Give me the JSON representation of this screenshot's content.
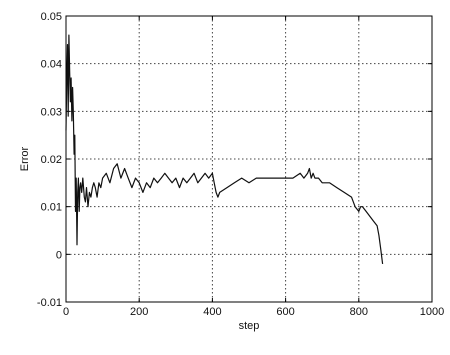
{
  "chart_data": {
    "type": "line",
    "title": "",
    "xlabel": "step",
    "ylabel": "Error",
    "xlim": [
      0,
      1000
    ],
    "ylim": [
      -0.01,
      0.05
    ],
    "xticks": [
      0,
      200,
      400,
      600,
      800,
      1000
    ],
    "xtick_labels": [
      "0",
      "200",
      "400",
      "600",
      "800",
      "1000"
    ],
    "yticks": [
      -0.01,
      0,
      0.01,
      0.02,
      0.03,
      0.04,
      0.05
    ],
    "ytick_labels": [
      "-0.01",
      "0",
      "0.01",
      "0.02",
      "0.03",
      "0.04",
      "0.05"
    ],
    "grid": true,
    "colors": {
      "line": "#111111",
      "grid": "#444444",
      "axes": "#000000"
    },
    "series": [
      {
        "x": [
          0,
          2,
          4,
          6,
          8,
          10,
          12,
          14,
          16,
          18,
          20,
          22,
          24,
          26,
          28,
          30,
          32,
          34,
          36,
          38,
          40,
          43,
          46,
          50,
          53,
          56,
          60,
          64,
          68,
          72,
          76,
          80,
          85,
          90,
          95,
          100,
          110,
          120,
          130,
          140,
          150,
          160,
          170,
          180,
          190,
          200,
          210,
          220,
          230,
          240,
          250,
          260,
          270,
          280,
          290,
          300,
          310,
          320,
          330,
          340,
          350,
          360,
          370,
          380,
          390,
          400,
          405,
          410,
          415,
          420,
          440,
          460,
          480,
          500,
          520,
          540,
          560,
          580,
          600,
          620,
          640,
          650,
          660,
          665,
          670,
          675,
          680,
          690,
          700,
          720,
          740,
          760,
          780,
          790,
          800,
          805,
          810,
          820,
          830,
          840,
          850,
          855,
          860,
          865
        ],
        "y": [
          0.026,
          0.036,
          0.044,
          0.029,
          0.046,
          0.038,
          0.032,
          0.037,
          0.028,
          0.035,
          0.03,
          0.021,
          0.025,
          0.009,
          0.016,
          0.002,
          0.013,
          0.016,
          0.009,
          0.014,
          0.015,
          0.013,
          0.016,
          0.012,
          0.011,
          0.014,
          0.01,
          0.013,
          0.012,
          0.014,
          0.015,
          0.014,
          0.012,
          0.015,
          0.014,
          0.016,
          0.017,
          0.015,
          0.018,
          0.019,
          0.016,
          0.018,
          0.016,
          0.014,
          0.016,
          0.015,
          0.013,
          0.015,
          0.014,
          0.016,
          0.015,
          0.016,
          0.017,
          0.016,
          0.015,
          0.016,
          0.014,
          0.016,
          0.015,
          0.016,
          0.017,
          0.015,
          0.016,
          0.017,
          0.016,
          0.017,
          0.015,
          0.013,
          0.012,
          0.013,
          0.014,
          0.015,
          0.016,
          0.015,
          0.016,
          0.016,
          0.016,
          0.016,
          0.016,
          0.016,
          0.017,
          0.016,
          0.017,
          0.018,
          0.016,
          0.017,
          0.016,
          0.016,
          0.015,
          0.015,
          0.014,
          0.013,
          0.012,
          0.01,
          0.009,
          0.01,
          0.01,
          0.009,
          0.008,
          0.007,
          0.006,
          0.004,
          0.001,
          -0.002
        ]
      }
    ]
  }
}
